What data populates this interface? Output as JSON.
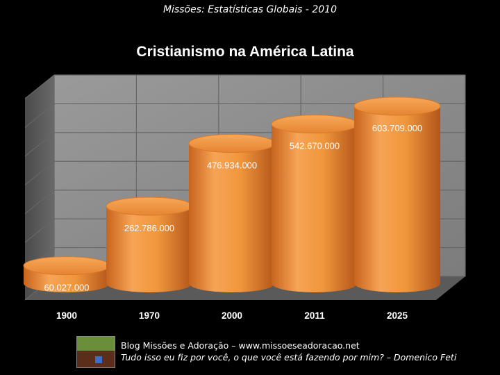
{
  "header": {
    "text": "Missões: Estatísticas Globais - 2010"
  },
  "chart_data": {
    "type": "bar",
    "title": "Cristianismo na América Latina",
    "categories": [
      "1900",
      "1970",
      "2000",
      "2011",
      "2025"
    ],
    "values": [
      60027000,
      262786000,
      476934000,
      542670000,
      603709000
    ],
    "value_labels": [
      "60.027.000",
      "262.786.000",
      "476.934.000",
      "542.670.000",
      "603.709.000"
    ],
    "ylim": [
      0,
      700000000
    ],
    "grid": true,
    "style": "3d-cylinder",
    "bar_color": "#f0963c",
    "wall_color": "#8a8a8a"
  },
  "footer": {
    "line1": "Blog Missões e Adoração – www.missoeseadoracao.net",
    "line2": "Tudo isso eu fiz por você, o que você está fazendo por mim? – Domenico Feti"
  }
}
